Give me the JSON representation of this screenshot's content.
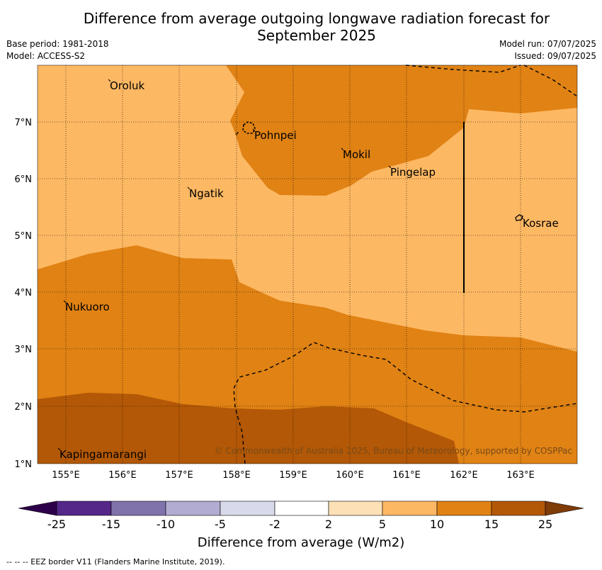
{
  "title_line1": "Difference from average outgoing longwave radiation forecast for",
  "title_line2": "September 2025",
  "meta": {
    "base_period": "Base period: 1981-2018",
    "model": "Model: ACCESS-S2",
    "model_run": "Model run: 07/07/2025",
    "issued": "Issued: 09/07/2025"
  },
  "axes": {
    "lon_ticks": [
      "155°E",
      "156°E",
      "157°E",
      "158°E",
      "159°E",
      "160°E",
      "161°E",
      "162°E",
      "163°E"
    ],
    "lat_ticks": [
      "7°N",
      "6°N",
      "5°N",
      "4°N",
      "3°N",
      "2°N",
      "1°N"
    ]
  },
  "places": [
    {
      "name": "Oroluk"
    },
    {
      "name": "Pohnpei"
    },
    {
      "name": "Mokil"
    },
    {
      "name": "Pingelap"
    },
    {
      "name": "Ngatik"
    },
    {
      "name": "Kosrae"
    },
    {
      "name": "Nukuoro"
    },
    {
      "name": "Kapingamarangi"
    }
  ],
  "copyright": "© Commonwealth of Australia 2025, Bureau of Meteorology, supported by COSPPac",
  "colorbar": {
    "ticks": [
      "-25",
      "-15",
      "-10",
      "-5",
      "-2",
      "2",
      "5",
      "10",
      "15",
      "25"
    ],
    "colors": [
      "#2d004b",
      "#542788",
      "#8073ac",
      "#b2abd2",
      "#d8daeb",
      "#ffffff",
      "#fee0b6",
      "#fdb863",
      "#e08214",
      "#b35806",
      "#7f3b08"
    ],
    "label": "Difference from average (W/m2)"
  },
  "footnote": "--  --  -- EEZ border V11 (Flanders Marine Institute, 2019).",
  "map_colors": {
    "light": "#fdb863",
    "mid": "#e08214",
    "dark": "#b35806"
  }
}
